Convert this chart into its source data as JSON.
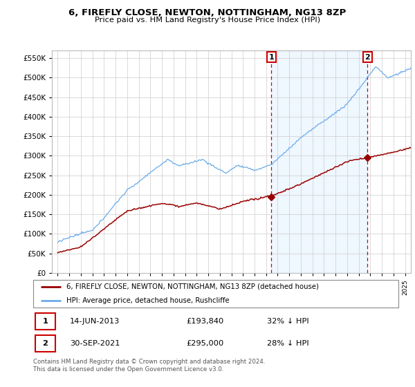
{
  "title": "6, FIREFLY CLOSE, NEWTON, NOTTINGHAM, NG13 8ZP",
  "subtitle": "Price paid vs. HM Land Registry's House Price Index (HPI)",
  "ylim": [
    0,
    570000
  ],
  "yticks": [
    0,
    50000,
    100000,
    150000,
    200000,
    250000,
    300000,
    350000,
    400000,
    450000,
    500000,
    550000
  ],
  "xlim_start": 1994.5,
  "xlim_end": 2025.5,
  "hpi_color": "#6aabe8",
  "hpi_fill_color": "#ddeeff",
  "price_color": "#990000",
  "dashed_line_color": "#cc0000",
  "point1_x": 2013.45,
  "point1_y": 193840,
  "point2_x": 2021.75,
  "point2_y": 295000,
  "legend_property_label": "6, FIREFLY CLOSE, NEWTON, NOTTINGHAM, NG13 8ZP (detached house)",
  "legend_hpi_label": "HPI: Average price, detached house, Rushcliffe",
  "table_row1": [
    "1",
    "14-JUN-2013",
    "£193,840",
    "32% ↓ HPI"
  ],
  "table_row2": [
    "2",
    "30-SEP-2021",
    "£295,000",
    "28% ↓ HPI"
  ],
  "footer": "Contains HM Land Registry data © Crown copyright and database right 2024.\nThis data is licensed under the Open Government Licence v3.0.",
  "background_color": "#ffffff",
  "grid_color": "#cccccc"
}
